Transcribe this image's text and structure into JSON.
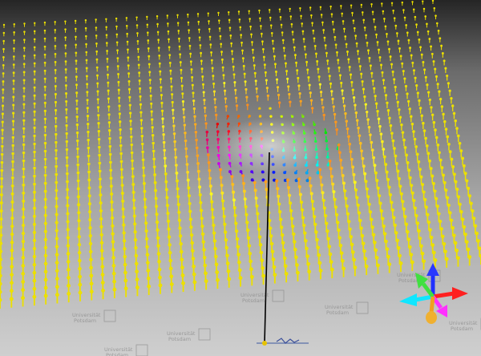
{
  "scene": {
    "watermark_text_line1": "Universität",
    "watermark_text_line2": "Potsdam",
    "colors": {
      "background_top": "#2f2f2f",
      "floor_top": "#b9b9b9",
      "floor_bottom": "#d6d6d6",
      "arrow_yellow": "#f0e600",
      "arrow_tip": "#ffe000",
      "skyrmion_magenta": "#ff00d0",
      "skyrmion_cyan": "#00d8ff",
      "skyrmion_green": "#3cff6a",
      "probe_line": "#000000"
    },
    "axes_gizmo": {
      "x": "red",
      "y": "green",
      "z": "blue",
      "neg_x": "cyan",
      "neg_z": "orange",
      "other": "magenta"
    }
  }
}
